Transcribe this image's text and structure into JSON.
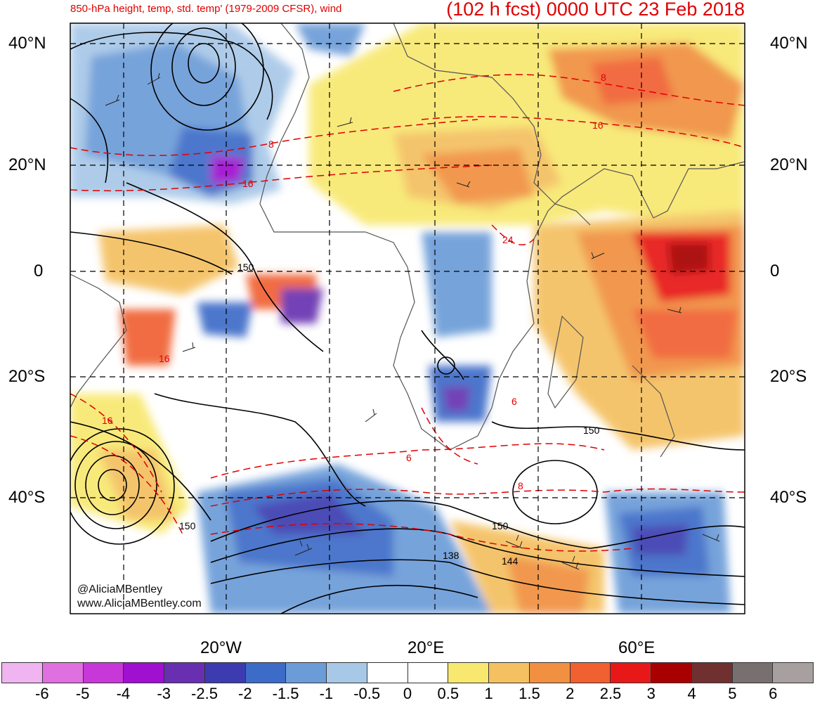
{
  "header": {
    "title_left": "850-hPa height, temp, std. temp' (1979-2009 CFSR), wind",
    "title_right": "(102 h fcst) 0000 UTC 23 Feb 2018"
  },
  "map": {
    "lat_labels": [
      "40°N",
      "20°N",
      "0",
      "20°S",
      "40°S"
    ],
    "lon_labels": [
      "20°W",
      "20°E",
      "60°E"
    ],
    "height_contour_labels": [
      "150",
      "150",
      "150",
      "150",
      "138",
      "144"
    ],
    "temp_contour_labels": [
      "8",
      "16",
      "8",
      "16",
      "24",
      "16",
      "16",
      "6",
      "6",
      "8"
    ],
    "credits": [
      "@AliciaMBentley",
      "www.AliciaMBentley.com"
    ]
  },
  "legend": {
    "ticks": [
      "-6",
      "-5",
      "-4",
      "-3",
      "-2.5",
      "-2",
      "-1.5",
      "-1",
      "-0.5",
      "0",
      "0.5",
      "1",
      "1.5",
      "2",
      "2.5",
      "3",
      "4",
      "5",
      "6"
    ],
    "colors": [
      "#f0b4f0",
      "#e070e0",
      "#c838d8",
      "#a010d0",
      "#6830b0",
      "#3c3cb0",
      "#3c6cc8",
      "#6c9cd8",
      "#a8c8e8",
      "#ffffff",
      "#ffffff",
      "#f8e870",
      "#f4c060",
      "#f09040",
      "#f06030",
      "#e81818",
      "#a80000",
      "#703030",
      "#787070",
      "#a8a0a0"
    ]
  }
}
